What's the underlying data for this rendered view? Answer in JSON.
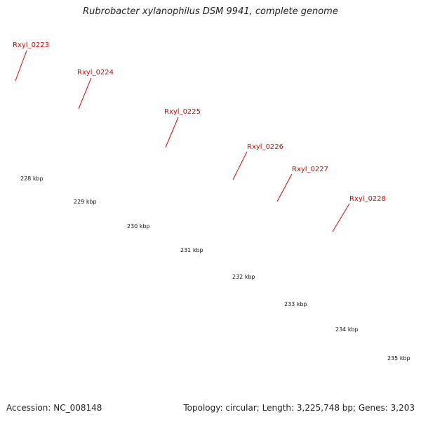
{
  "title": "Rubrobacter xylanophilus DSM 9941, complete genome",
  "footer": {
    "accession": "Accession: NC_008148",
    "summary": "Topology: circular; Length: 3,225,748 bp; Genes: 3,203"
  },
  "gene_labels": [
    "Rxyl_0223",
    "Rxyl_0224",
    "Rxyl_0225",
    "Rxyl_0226",
    "Rxyl_0227",
    "Rxyl_0228"
  ],
  "scale_labels": [
    "228 kbp",
    "229 kbp",
    "230 kbp",
    "231 kbp",
    "232 kbp",
    "233 kbp",
    "234 kbp",
    "235 kbp"
  ],
  "colors": {
    "label_red": "#dd0000",
    "cds_red": "#ee0000",
    "tick_green": "#006600",
    "backbone": "#777777",
    "cyan": "#22eeee",
    "light_blue": "#33bbee",
    "purple": "#443d88",
    "blue": "#1111ee",
    "khaki": "#b8b070",
    "gray_bar": "#bbbbbb"
  }
}
